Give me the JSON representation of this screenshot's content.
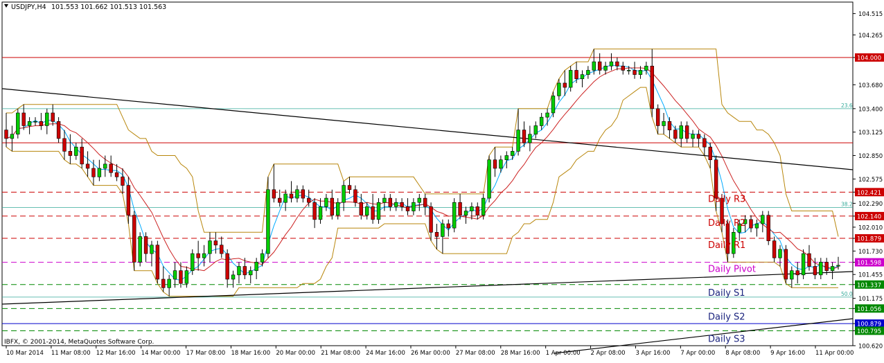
{
  "header": {
    "symbol_timeframe": "USDJPY,H4",
    "ohlc": "101.553 101.662 101.513 101.563",
    "icon": "dropdown-triangle-icon"
  },
  "footer": {
    "copyright": "IBFX, © 2001-2014, MetaQuotes Software Corp."
  },
  "colors": {
    "resistance": "#cc0000",
    "pivot": "#cc00cc",
    "support": "#008800",
    "s_label": "#1a237e",
    "trendline": "#000000",
    "bull_candle": "#00cc00",
    "bear_candle": "#cc0000",
    "fib": "#33aa99",
    "envelope": "#b8860b",
    "fast_ma": "#00aaff",
    "slow_ma": "#cc2222",
    "blue_line": "#0000cc"
  },
  "chart_data": {
    "type": "candlestick",
    "ylim": [
      100.62,
      104.65
    ],
    "y_ticks": [
      "104.515",
      "104.265",
      "104.000",
      "103.680",
      "103.400",
      "103.125",
      "102.850",
      "102.575",
      "102.421",
      "102.290",
      "102.140",
      "102.010",
      "101.879",
      "101.730",
      "101.598",
      "101.455",
      "101.337",
      "101.175",
      "101.056",
      "100.879",
      "100.795",
      "100.620"
    ],
    "x_labels": [
      "10 Mar 2014",
      "11 Mar 08:00",
      "12 Mar 16:00",
      "14 Mar 00:00",
      "17 Mar 08:00",
      "18 Mar 16:00",
      "20 Mar 00:00",
      "21 Mar 08:00",
      "24 Mar 16:00",
      "26 Mar 00:00",
      "27 Mar 08:00",
      "28 Mar 16:00",
      "1 Apr 00:00",
      "2 Apr 08:00",
      "3 Apr 16:00",
      "7 Apr 00:00",
      "8 Apr 08:00",
      "9 Apr 16:00",
      "11 Apr 00:00"
    ],
    "levels": [
      {
        "value": 104.0,
        "label": "104.000",
        "style": "solid",
        "color": "#cc0000"
      },
      {
        "value": 103.0,
        "label": "103.000",
        "style": "solid",
        "color": "#cc0000"
      },
      {
        "value": 102.421,
        "label": "102.421",
        "style": "dashed",
        "color": "#cc0000",
        "name": "Daily R3"
      },
      {
        "value": 102.14,
        "label": "102.140",
        "style": "dashed",
        "color": "#cc0000",
        "name": "Daily R2"
      },
      {
        "value": 101.879,
        "label": "101.879",
        "style": "dashed",
        "color": "#cc0000",
        "name": "Daily R1"
      },
      {
        "value": 101.598,
        "label": "101.598",
        "style": "dashed",
        "color": "#cc00cc",
        "name": "Daily Pivot"
      },
      {
        "value": 101.337,
        "label": "101.337",
        "style": "dashed",
        "color": "#008800",
        "name": "Daily S1"
      },
      {
        "value": 101.056,
        "label": "101.056",
        "style": "dashed",
        "color": "#008800",
        "name": "Daily S2"
      },
      {
        "value": 100.795,
        "label": "100.795",
        "style": "dashed",
        "color": "#008800",
        "name": "Daily S3"
      },
      {
        "value": 100.879,
        "label": "100.879",
        "style": "solid",
        "color": "#0000cc"
      }
    ],
    "fib_levels": [
      {
        "value": 103.4,
        "label": "23.6"
      },
      {
        "value": 102.24,
        "label": "38.2"
      },
      {
        "value": 101.19,
        "label": "50.0"
      }
    ],
    "candles": [
      [
        103.15,
        103.35,
        102.95,
        103.05
      ],
      [
        103.05,
        103.2,
        102.9,
        103.1
      ],
      [
        103.1,
        103.4,
        103.05,
        103.35
      ],
      [
        103.35,
        103.45,
        103.15,
        103.2
      ],
      [
        103.2,
        103.3,
        103.1,
        103.25
      ],
      [
        103.25,
        103.3,
        103.2,
        103.25
      ],
      [
        103.25,
        103.35,
        103.15,
        103.2
      ],
      [
        103.2,
        103.4,
        103.1,
        103.35
      ],
      [
        103.35,
        103.45,
        103.2,
        103.25
      ],
      [
        103.25,
        103.3,
        103.0,
        103.05
      ],
      [
        103.05,
        103.15,
        102.8,
        102.9
      ],
      [
        102.9,
        103.1,
        102.75,
        102.85
      ],
      [
        102.85,
        103.0,
        102.8,
        102.95
      ],
      [
        102.95,
        103.05,
        102.7,
        102.75
      ],
      [
        102.75,
        102.9,
        102.6,
        102.7
      ],
      [
        102.7,
        102.8,
        102.5,
        102.6
      ],
      [
        102.6,
        102.8,
        102.55,
        102.7
      ],
      [
        102.7,
        102.85,
        102.6,
        102.75
      ],
      [
        102.75,
        102.85,
        102.6,
        102.65
      ],
      [
        102.65,
        102.75,
        102.55,
        102.6
      ],
      [
        102.6,
        102.7,
        102.4,
        102.5
      ],
      [
        102.5,
        102.6,
        102.05,
        102.15
      ],
      [
        102.15,
        102.2,
        101.5,
        101.6
      ],
      [
        101.6,
        101.95,
        101.55,
        101.9
      ],
      [
        101.9,
        101.95,
        101.6,
        101.7
      ],
      [
        101.7,
        101.85,
        101.55,
        101.8
      ],
      [
        101.8,
        101.85,
        101.35,
        101.4
      ],
      [
        101.4,
        101.55,
        101.25,
        101.3
      ],
      [
        101.3,
        101.45,
        101.2,
        101.4
      ],
      [
        101.4,
        101.6,
        101.3,
        101.5
      ],
      [
        101.5,
        101.6,
        101.3,
        101.35
      ],
      [
        101.35,
        101.55,
        101.3,
        101.5
      ],
      [
        101.5,
        101.75,
        101.45,
        101.7
      ],
      [
        101.7,
        101.85,
        101.5,
        101.65
      ],
      [
        101.65,
        101.8,
        101.55,
        101.7
      ],
      [
        101.7,
        101.95,
        101.6,
        101.85
      ],
      [
        101.85,
        101.95,
        101.7,
        101.8
      ],
      [
        101.8,
        101.9,
        101.65,
        101.7
      ],
      [
        101.7,
        101.75,
        101.3,
        101.4
      ],
      [
        101.4,
        101.5,
        101.3,
        101.45
      ],
      [
        101.45,
        101.6,
        101.35,
        101.55
      ],
      [
        101.55,
        101.65,
        101.4,
        101.45
      ],
      [
        101.45,
        101.55,
        101.35,
        101.5
      ],
      [
        101.5,
        101.65,
        101.4,
        101.6
      ],
      [
        101.6,
        101.75,
        101.55,
        101.7
      ],
      [
        101.7,
        102.6,
        101.65,
        102.45
      ],
      [
        102.45,
        102.75,
        102.3,
        102.35
      ],
      [
        102.35,
        102.45,
        102.25,
        102.3
      ],
      [
        102.3,
        102.45,
        102.2,
        102.4
      ],
      [
        102.4,
        102.55,
        102.3,
        102.35
      ],
      [
        102.35,
        102.5,
        102.3,
        102.45
      ],
      [
        102.45,
        102.5,
        102.3,
        102.35
      ],
      [
        102.35,
        102.45,
        102.25,
        102.3
      ],
      [
        102.3,
        102.35,
        102.0,
        102.1
      ],
      [
        102.1,
        102.35,
        102.05,
        102.25
      ],
      [
        102.25,
        102.4,
        102.2,
        102.35
      ],
      [
        102.35,
        102.45,
        102.1,
        102.15
      ],
      [
        102.15,
        102.35,
        102.1,
        102.3
      ],
      [
        102.3,
        102.55,
        102.2,
        102.5
      ],
      [
        102.5,
        102.6,
        102.4,
        102.45
      ],
      [
        102.45,
        102.5,
        102.25,
        102.3
      ],
      [
        102.3,
        102.4,
        102.1,
        102.15
      ],
      [
        102.15,
        102.3,
        102.1,
        102.25
      ],
      [
        102.25,
        102.4,
        102.05,
        102.1
      ],
      [
        102.1,
        102.35,
        102.05,
        102.3
      ],
      [
        102.3,
        102.4,
        102.2,
        102.35
      ],
      [
        102.35,
        102.4,
        102.2,
        102.25
      ],
      [
        102.25,
        102.35,
        102.2,
        102.3
      ],
      [
        102.3,
        102.35,
        102.2,
        102.25
      ],
      [
        102.25,
        102.35,
        102.15,
        102.2
      ],
      [
        102.2,
        102.35,
        102.15,
        102.3
      ],
      [
        102.3,
        102.4,
        102.2,
        102.35
      ],
      [
        102.35,
        102.4,
        102.15,
        102.25
      ],
      [
        102.25,
        102.3,
        101.85,
        101.95
      ],
      [
        101.95,
        102.05,
        101.75,
        101.9
      ],
      [
        101.9,
        102.1,
        101.7,
        102.05
      ],
      [
        102.05,
        102.1,
        101.9,
        102.0
      ],
      [
        102.0,
        102.35,
        101.95,
        102.3
      ],
      [
        102.3,
        102.4,
        102.1,
        102.15
      ],
      [
        102.15,
        102.25,
        102.05,
        102.2
      ],
      [
        102.2,
        102.3,
        102.1,
        102.25
      ],
      [
        102.25,
        102.3,
        102.1,
        102.15
      ],
      [
        102.15,
        102.4,
        102.1,
        102.35
      ],
      [
        102.35,
        102.85,
        102.3,
        102.8
      ],
      [
        102.8,
        102.95,
        102.6,
        102.7
      ],
      [
        102.7,
        102.85,
        102.65,
        102.8
      ],
      [
        102.8,
        102.9,
        102.7,
        102.85
      ],
      [
        102.85,
        102.95,
        102.8,
        102.9
      ],
      [
        102.9,
        103.4,
        102.85,
        103.15
      ],
      [
        103.15,
        103.25,
        102.95,
        103.0
      ],
      [
        103.0,
        103.2,
        102.9,
        103.1
      ],
      [
        103.1,
        103.25,
        103.05,
        103.2
      ],
      [
        103.2,
        103.35,
        103.15,
        103.3
      ],
      [
        103.3,
        103.4,
        103.2,
        103.35
      ],
      [
        103.35,
        103.6,
        103.3,
        103.55
      ],
      [
        103.55,
        103.75,
        103.5,
        103.7
      ],
      [
        103.7,
        103.85,
        103.55,
        103.65
      ],
      [
        103.65,
        103.9,
        103.6,
        103.85
      ],
      [
        103.85,
        103.95,
        103.7,
        103.75
      ],
      [
        103.75,
        103.85,
        103.65,
        103.8
      ],
      [
        103.8,
        103.9,
        103.75,
        103.85
      ],
      [
        103.85,
        104.1,
        103.8,
        103.95
      ],
      [
        103.95,
        104.05,
        103.8,
        103.85
      ],
      [
        103.85,
        103.95,
        103.8,
        103.9
      ],
      [
        103.9,
        104.05,
        103.85,
        103.95
      ],
      [
        103.95,
        104.0,
        103.85,
        103.9
      ],
      [
        103.9,
        103.95,
        103.8,
        103.85
      ],
      [
        103.85,
        103.9,
        103.8,
        103.85
      ],
      [
        103.85,
        103.95,
        103.75,
        103.8
      ],
      [
        103.8,
        103.9,
        103.75,
        103.85
      ],
      [
        103.85,
        103.95,
        103.8,
        103.9
      ],
      [
        103.9,
        104.1,
        103.3,
        103.4
      ],
      [
        103.4,
        103.45,
        103.1,
        103.2
      ],
      [
        103.2,
        103.35,
        103.1,
        103.25
      ],
      [
        103.25,
        103.3,
        103.05,
        103.15
      ],
      [
        103.15,
        103.2,
        103.0,
        103.05
      ],
      [
        103.05,
        103.25,
        102.95,
        103.2
      ],
      [
        103.2,
        103.25,
        103.0,
        103.05
      ],
      [
        103.05,
        103.15,
        102.95,
        103.1
      ],
      [
        103.1,
        103.15,
        102.95,
        103.05
      ],
      [
        103.05,
        103.1,
        102.85,
        102.95
      ],
      [
        102.95,
        103.0,
        102.7,
        102.8
      ],
      [
        102.8,
        102.85,
        102.2,
        102.35
      ],
      [
        102.35,
        102.4,
        101.95,
        102.05
      ],
      [
        102.05,
        102.1,
        101.6,
        101.7
      ],
      [
        101.7,
        102.0,
        101.65,
        101.95
      ],
      [
        101.95,
        102.1,
        101.85,
        102.05
      ],
      [
        102.05,
        102.15,
        101.95,
        102.1
      ],
      [
        102.1,
        102.15,
        101.95,
        102.0
      ],
      [
        102.0,
        102.1,
        101.9,
        102.05
      ],
      [
        102.05,
        102.2,
        101.95,
        102.15
      ],
      [
        102.15,
        102.2,
        101.8,
        101.85
      ],
      [
        101.85,
        101.9,
        101.6,
        101.65
      ],
      [
        101.65,
        101.8,
        101.55,
        101.75
      ],
      [
        101.75,
        101.8,
        101.35,
        101.4
      ],
      [
        101.4,
        101.55,
        101.3,
        101.5
      ],
      [
        101.5,
        101.6,
        101.35,
        101.45
      ],
      [
        101.45,
        101.75,
        101.4,
        101.7
      ],
      [
        101.7,
        101.8,
        101.5,
        101.55
      ],
      [
        101.55,
        101.65,
        101.4,
        101.45
      ],
      [
        101.45,
        101.65,
        101.4,
        101.6
      ],
      [
        101.6,
        101.65,
        101.45,
        101.5
      ],
      [
        101.5,
        101.6,
        101.4,
        101.55
      ],
      [
        101.553,
        101.662,
        101.513,
        101.563
      ]
    ]
  }
}
